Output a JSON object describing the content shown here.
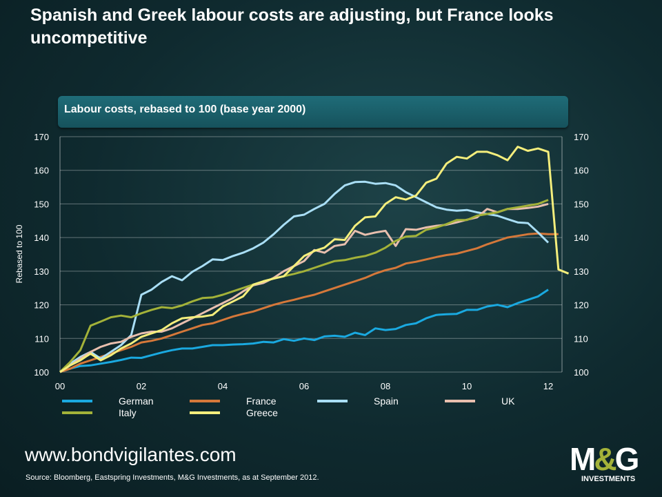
{
  "title": "Spanish and Greek labour costs are adjusting, but France looks uncompetitive",
  "footer": {
    "url": "www.bondvigilantes.com",
    "source": "Source: Bloomberg, Eastspring Investments, M&G Investments, as at September 2012.",
    "logo": {
      "m": "M",
      "amp": "&",
      "g": "G",
      "sub": "INVESTMENTS"
    }
  },
  "chart_data": {
    "type": "line",
    "title": "Labour costs, rebased to 100 (base year 2000)",
    "ylabel": "Rebased to 100",
    "xlabel": "",
    "ylim": [
      100,
      170
    ],
    "xlim": [
      0,
      12.75
    ],
    "x_step": 0.25,
    "yticks": [
      100,
      110,
      120,
      130,
      140,
      150,
      160,
      170
    ],
    "xticks": [
      {
        "v": 0,
        "label": "00"
      },
      {
        "v": 2,
        "label": "02"
      },
      {
        "v": 4,
        "label": "04"
      },
      {
        "v": 6,
        "label": "06"
      },
      {
        "v": 8,
        "label": "08"
      },
      {
        "v": 10,
        "label": "10"
      },
      {
        "v": 12,
        "label": "12"
      }
    ],
    "grid": true,
    "legend_placement": "bottom",
    "series": [
      {
        "name": "German",
        "color": "#1aa9e0",
        "values": [
          100,
          101,
          101.8,
          102,
          102.5,
          103,
          103.6,
          104.3,
          104.2,
          105,
          105.8,
          106.5,
          107,
          107,
          107.5,
          108,
          108,
          108.2,
          108.3,
          108.5,
          109,
          108.8,
          109.8,
          109.3,
          110,
          109.5,
          110.6,
          110.8,
          110.5,
          111.7,
          111,
          113,
          112.5,
          112.8,
          114,
          114.5,
          116,
          117,
          117.2,
          117.3,
          118.5,
          118.5,
          119.5,
          120,
          119.3,
          120.5,
          121.5,
          122.5,
          124.5
        ]
      },
      {
        "name": "France",
        "color": "#d5783a",
        "values": [
          100,
          101,
          102.5,
          103.5,
          104.5,
          105.5,
          106.5,
          107.5,
          108.8,
          109.3,
          110,
          111,
          112,
          113,
          114,
          114.5,
          115.5,
          116.5,
          117.3,
          118,
          119,
          120,
          120.8,
          121.5,
          122.3,
          123,
          124,
          125,
          126,
          127,
          128,
          129.3,
          130.3,
          131,
          132.3,
          132.8,
          133.5,
          134.2,
          134.8,
          135.2,
          136,
          136.8,
          138,
          139,
          140,
          140.5,
          141,
          141.2,
          141,
          141
        ]
      },
      {
        "name": "Spain",
        "color": "#a9def5",
        "values": [
          100,
          102.5,
          104.5,
          106,
          104,
          106,
          108,
          111,
          123,
          124.5,
          126.8,
          128.5,
          127.3,
          129.8,
          131.5,
          133.5,
          133.3,
          134.5,
          135.5,
          136.8,
          138.5,
          141,
          143.8,
          146.3,
          146.8,
          148.5,
          150,
          153,
          155.5,
          156.5,
          156.6,
          156,
          156.2,
          155.5,
          153.5,
          152,
          150.5,
          149,
          148.3,
          148,
          148.2,
          147.5,
          147,
          146.5,
          145.5,
          144.5,
          144.3,
          141.5,
          138.5
        ]
      },
      {
        "name": "UK",
        "color": "#e8bfae",
        "values": [
          100,
          102,
          104,
          106,
          107.5,
          108.5,
          109,
          110.5,
          111.5,
          112,
          112,
          113,
          114.5,
          116,
          117.5,
          119,
          120.5,
          122,
          124,
          125.8,
          126.5,
          128,
          130,
          131.5,
          133,
          136.3,
          135.5,
          137.5,
          138,
          142,
          140.8,
          141.5,
          142,
          137.5,
          142.5,
          142.3,
          143,
          143.5,
          143.8,
          144.5,
          145.3,
          146,
          148.5,
          147.5,
          148.5,
          148.5,
          148.8,
          149.2,
          150
        ]
      },
      {
        "name": "Italy",
        "color": "#a3b239",
        "values": [
          100,
          103,
          106.5,
          113.8,
          115,
          116.3,
          116.8,
          116.3,
          117.5,
          118.5,
          119.3,
          119,
          119.8,
          121,
          122,
          122.2,
          123,
          124,
          125,
          126,
          127,
          127.8,
          128.5,
          129.2,
          130,
          131,
          132,
          133,
          133.3,
          134,
          134.5,
          135.5,
          137,
          139,
          140.3,
          140.5,
          142.3,
          143,
          144,
          145.2,
          145.2,
          146.5,
          147,
          147.5,
          148.5,
          149,
          149.5,
          150,
          151.2
        ]
      },
      {
        "name": "Greece",
        "color": "#f4ee7c",
        "values": [
          100,
          102,
          103.5,
          105.5,
          103.5,
          105,
          107,
          108.5,
          110.5,
          111.5,
          112.5,
          114.5,
          116,
          116.3,
          116.5,
          117,
          119.5,
          121,
          122.5,
          126,
          127,
          127.8,
          128.5,
          131.5,
          134.5,
          136,
          137,
          139.5,
          139.3,
          143.5,
          146,
          146.3,
          150,
          152,
          151.3,
          152.5,
          156.3,
          157.5,
          162,
          164,
          163.5,
          165.5,
          165.5,
          164.5,
          163,
          167,
          165.8,
          166.5,
          165.5,
          130.5,
          129.3
        ]
      }
    ]
  }
}
